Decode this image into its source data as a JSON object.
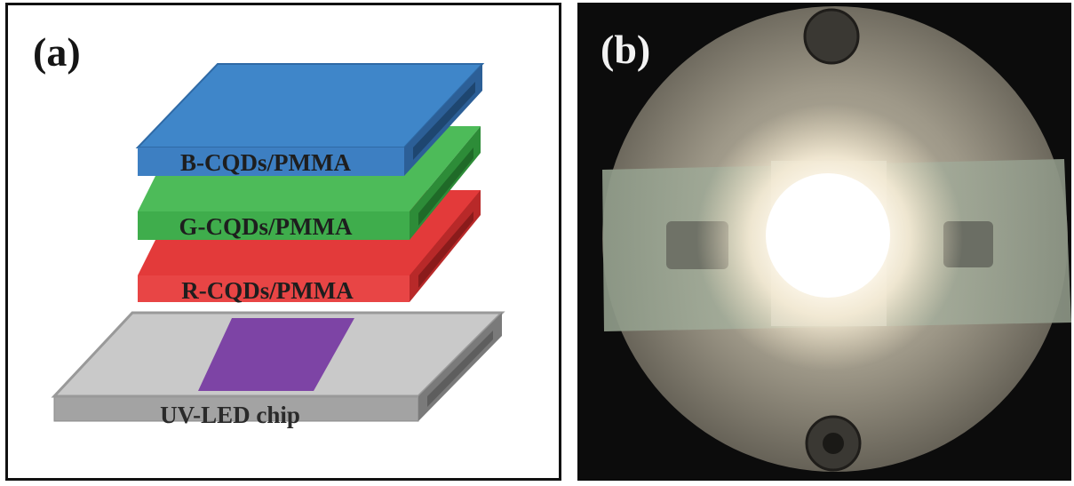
{
  "panel_a": {
    "label": "(a)",
    "layers": [
      {
        "text": "B-CQDs/PMMA",
        "color": "#3d7fc2"
      },
      {
        "text": "G-CQDs/PMMA",
        "color": "#3fad4c"
      },
      {
        "text": "R-CQDs/PMMA",
        "color": "#e43b3b"
      }
    ],
    "chip": {
      "text": "UV-LED chip",
      "color": "#a8a8a8",
      "die_color": "#7d44a5"
    }
  },
  "panel_b": {
    "label": "(b)"
  }
}
